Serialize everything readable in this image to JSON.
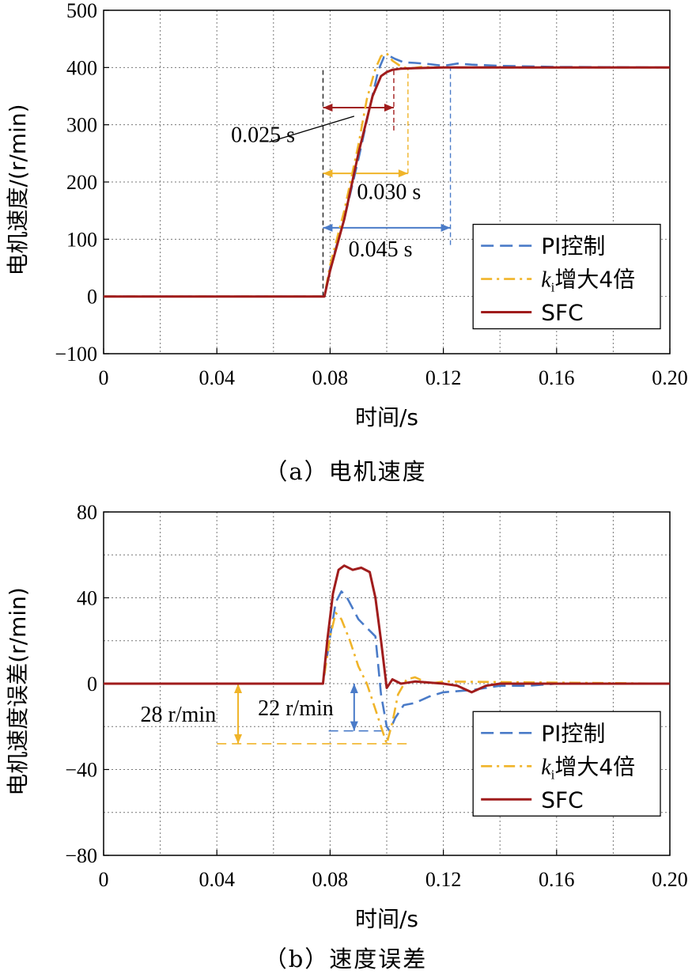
{
  "chart_data": [
    {
      "type": "line",
      "caption": "（a）电机速度",
      "xlabel": "时间/s",
      "ylabel": "电机速度/(r/min)",
      "xlim": [
        0,
        0.2
      ],
      "ylim": [
        -100,
        500
      ],
      "xticks": [
        0,
        0.04,
        0.08,
        0.12,
        0.16,
        0.2
      ],
      "xtick_labels": [
        "0",
        "0.04",
        "0.08",
        "0.12",
        "0.16",
        "0.20"
      ],
      "yticks": [
        -100,
        0,
        100,
        200,
        300,
        400,
        500
      ],
      "ytick_labels": [
        "−100",
        "0",
        "100",
        "200",
        "300",
        "400",
        "500"
      ],
      "grid": true,
      "legend": {
        "placement": "bottom-right",
        "entries": [
          {
            "label": "PI控制",
            "color": "#4a7bc8",
            "style": "dashed"
          },
          {
            "label_k": "k",
            "label_sub": "i",
            "label_rest": "增大4倍",
            "color": "#f0b429",
            "style": "dashdot"
          },
          {
            "label": "SFC",
            "color": "#a01c1c",
            "style": "solid"
          }
        ]
      },
      "series": [
        {
          "name": "PI控制",
          "color": "#4a7bc8",
          "style": "dashed",
          "x": [
            0,
            0.0775,
            0.078,
            0.08,
            0.085,
            0.09,
            0.094,
            0.097,
            0.099,
            0.101,
            0.103,
            0.106,
            0.11,
            0.115,
            0.12,
            0.125,
            0.13,
            0.14,
            0.15,
            0.16,
            0.2
          ],
          "y": [
            0,
            0,
            0,
            50,
            135,
            240,
            330,
            395,
            418,
            420,
            415,
            409,
            408,
            406,
            403,
            407,
            405,
            403,
            402,
            401,
            400
          ]
        },
        {
          "name": "ki增大4倍",
          "color": "#f0b429",
          "style": "dashdot",
          "x": [
            0,
            0.0775,
            0.078,
            0.08,
            0.085,
            0.09,
            0.093,
            0.096,
            0.098,
            0.1,
            0.102,
            0.105,
            0.108,
            0.112,
            0.12,
            0.14,
            0.2
          ],
          "y": [
            0,
            0,
            0,
            55,
            150,
            265,
            345,
            398,
            420,
            425,
            412,
            402,
            398,
            401,
            400,
            400,
            400
          ]
        },
        {
          "name": "SFC",
          "color": "#a01c1c",
          "style": "solid",
          "x": [
            0,
            0.0775,
            0.078,
            0.08,
            0.085,
            0.09,
            0.095,
            0.098,
            0.1,
            0.102,
            0.105,
            0.11,
            0.12,
            0.13,
            0.14,
            0.16,
            0.2
          ],
          "y": [
            0,
            0,
            0,
            45,
            135,
            250,
            350,
            385,
            392,
            396,
            398,
            399,
            400,
            400,
            400,
            400,
            400
          ]
        }
      ],
      "annotations": [
        {
          "text": "0.025 s",
          "x_from": 0.0775,
          "x_to": 0.1025,
          "y": 330,
          "color": "#a01c1c",
          "label_at": [
            0.045,
            270
          ]
        },
        {
          "text": "0.030 s",
          "x_from": 0.0775,
          "x_to": 0.1075,
          "y": 215,
          "color": "#f0b429",
          "label_at": [
            0.0895,
            170
          ]
        },
        {
          "text": "0.045 s",
          "x_from": 0.0775,
          "x_to": 0.1225,
          "y": 120,
          "color": "#4a7bc8",
          "label_at": [
            0.0865,
            70
          ]
        }
      ]
    },
    {
      "type": "line",
      "caption": "（b）速度误差",
      "xlabel": "时间/s",
      "ylabel": "电机速度误差(r/min)",
      "xlim": [
        0,
        0.2
      ],
      "ylim": [
        -80,
        80
      ],
      "xticks": [
        0,
        0.04,
        0.08,
        0.12,
        0.16,
        0.2
      ],
      "xtick_labels": [
        "0",
        "0.04",
        "0.08",
        "0.12",
        "0.16",
        "0.20"
      ],
      "yticks": [
        -80,
        -40,
        0,
        40,
        80
      ],
      "ytick_labels": [
        "−80",
        "−40",
        "0",
        "40",
        "80"
      ],
      "grid": true,
      "legend": {
        "placement": "bottom-right",
        "entries": [
          {
            "label": "PI控制",
            "color": "#4a7bc8",
            "style": "dashed"
          },
          {
            "label_k": "k",
            "label_sub": "i",
            "label_rest": "增大4倍",
            "color": "#f0b429",
            "style": "dashdot"
          },
          {
            "label": "SFC",
            "color": "#a01c1c",
            "style": "solid"
          }
        ]
      },
      "series": [
        {
          "name": "PI控制",
          "color": "#4a7bc8",
          "style": "dashed",
          "x": [
            0,
            0.0775,
            0.08,
            0.082,
            0.084,
            0.086,
            0.09,
            0.093,
            0.096,
            0.098,
            0.1,
            0.101,
            0.103,
            0.106,
            0.11,
            0.115,
            0.12,
            0.13,
            0.14,
            0.15,
            0.16,
            0.2
          ],
          "y": [
            0,
            0,
            22,
            38,
            43,
            40,
            30,
            26,
            22,
            -5,
            -20,
            -22,
            -16,
            -10,
            -9,
            -6,
            -4,
            -3,
            -1,
            -1,
            0,
            0
          ]
        },
        {
          "name": "ki增大4倍",
          "color": "#f0b429",
          "style": "dashdot",
          "x": [
            0,
            0.0775,
            0.08,
            0.082,
            0.084,
            0.087,
            0.09,
            0.093,
            0.096,
            0.098,
            0.1,
            0.102,
            0.104,
            0.107,
            0.11,
            0.115,
            0.12,
            0.2
          ],
          "y": [
            0,
            0,
            22,
            33,
            30,
            20,
            8,
            0,
            -12,
            -20,
            -28,
            -18,
            -5,
            2,
            3,
            0,
            1,
            0
          ]
        },
        {
          "name": "SFC",
          "color": "#a01c1c",
          "style": "solid",
          "x": [
            0,
            0.0775,
            0.079,
            0.081,
            0.083,
            0.085,
            0.088,
            0.091,
            0.094,
            0.096,
            0.098,
            0.1,
            0.102,
            0.105,
            0.11,
            0.12,
            0.125,
            0.13,
            0.135,
            0.14,
            0.16,
            0.2
          ],
          "y": [
            0,
            0,
            20,
            42,
            53,
            55,
            53,
            54,
            52,
            40,
            20,
            -2,
            2,
            0,
            1,
            0,
            -1,
            -4,
            -1,
            0,
            0,
            0
          ]
        }
      ],
      "annotations": [
        {
          "text": "28 r/min",
          "value": 28,
          "x_arrow": 0.0475,
          "y_from": 0,
          "y_to": -28,
          "color": "#f0b429",
          "label_at": [
            0.013,
            -14
          ]
        },
        {
          "text": "22 r/min",
          "value": 22,
          "x_arrow": 0.0885,
          "y_from": 0,
          "y_to": -22,
          "color": "#4a7bc8",
          "label_at": [
            0.0545,
            -11
          ]
        }
      ]
    }
  ]
}
